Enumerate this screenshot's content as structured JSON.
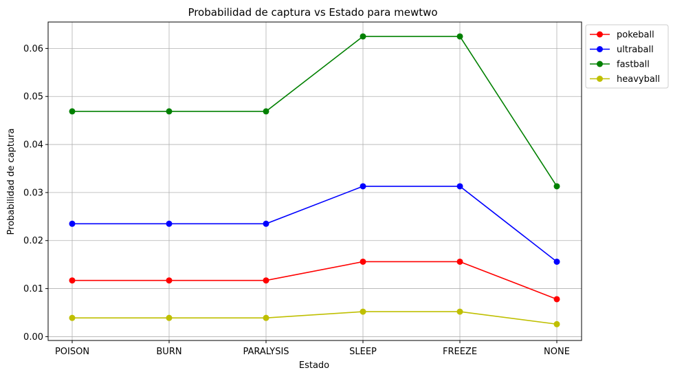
{
  "chart_data": {
    "type": "line",
    "title": "Probabilidad de captura vs Estado para mewtwo",
    "xlabel": "Estado",
    "ylabel": "Probabilidad de captura",
    "categories": [
      "POISON",
      "BURN",
      "PARALYSIS",
      "SLEEP",
      "FREEZE",
      "NONE"
    ],
    "ylim": [
      -0.0008,
      0.0655
    ],
    "yticks": [
      0.0,
      0.01,
      0.02,
      0.03,
      0.04,
      0.05,
      0.06
    ],
    "ytick_labels": [
      "0.00",
      "0.01",
      "0.02",
      "0.03",
      "0.04",
      "0.05",
      "0.06"
    ],
    "grid": true,
    "legend_position": "outside-top-right",
    "series": [
      {
        "name": "pokeball",
        "color": "#ff0000",
        "values": [
          0.0117,
          0.0117,
          0.0117,
          0.0156,
          0.0156,
          0.0078
        ]
      },
      {
        "name": "ultraball",
        "color": "#0000ff",
        "values": [
          0.0235,
          0.0235,
          0.0235,
          0.0313,
          0.0313,
          0.0156
        ]
      },
      {
        "name": "fastball",
        "color": "#008000",
        "values": [
          0.0469,
          0.0469,
          0.0469,
          0.0625,
          0.0625,
          0.0313
        ]
      },
      {
        "name": "heavyball",
        "color": "#bfbf00",
        "values": [
          0.0039,
          0.0039,
          0.0039,
          0.0052,
          0.0052,
          0.0026
        ]
      }
    ]
  }
}
